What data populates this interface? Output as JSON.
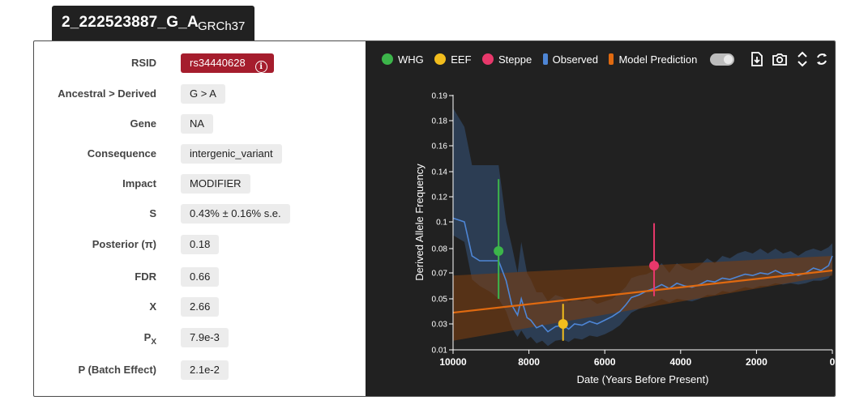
{
  "header": {
    "variant": "2_222523887_G_A",
    "build": "GRCh37"
  },
  "info_rows": [
    {
      "label": "RSID",
      "value": "rs34440628",
      "style": "badge"
    },
    {
      "label": "Ancestral > Derived",
      "value": "G > A"
    },
    {
      "label": "Gene",
      "value": "NA"
    },
    {
      "label": "Consequence",
      "value": "intergenic_variant"
    },
    {
      "label": "Impact",
      "value": "MODIFIER"
    },
    {
      "label": "S",
      "value": "0.43% ± 0.16% s.e."
    },
    {
      "label": "Posterior (π)",
      "value": "0.18"
    },
    {
      "label": "FDR",
      "value": "0.66"
    },
    {
      "label": "X",
      "value": "2.66"
    },
    {
      "label_main": "P",
      "label_sub": "X",
      "value": "7.9e-3"
    },
    {
      "label": "P (Batch Effect)",
      "value": "2.1e-2"
    }
  ],
  "rsid_info_glyph": "i",
  "legend": [
    {
      "label": "WHG",
      "color": "#3cb54a",
      "shape": "dot"
    },
    {
      "label": "EEF",
      "color": "#f2bd1d",
      "shape": "dot"
    },
    {
      "label": "Steppe",
      "color": "#e8386b",
      "shape": "dot"
    },
    {
      "label": "Observed",
      "color": "#4e86d6",
      "shape": "bar"
    },
    {
      "label": "Model Prediction",
      "color": "#e06a10",
      "shape": "bar"
    }
  ],
  "toolbar_icons": [
    "file-download-icon",
    "camera-icon",
    "expand-icon",
    "refresh-icon"
  ],
  "chart_data": {
    "type": "line",
    "xlabel": "Date (Years Before Present)",
    "ylabel": "Derived Allele Frequency",
    "xlim": [
      10000,
      0
    ],
    "ylim": [
      0.01,
      0.19
    ],
    "x_ticks": [
      10000,
      8000,
      6000,
      4000,
      2000,
      0
    ],
    "y_ticks": [
      0.01,
      0.03,
      0.05,
      0.07,
      0.08,
      0.1,
      0.12,
      0.14,
      0.16,
      0.18,
      0.19
    ],
    "grid": false,
    "colors": {
      "observed": "#4e86d6",
      "observed_band": "#2f4560",
      "model": "#e06a10",
      "model_band": "#7a3d10",
      "axis": "#ffffff"
    },
    "observed": {
      "x": [
        10000,
        9700,
        9500,
        9300,
        9000,
        8800,
        8600,
        8450,
        8300,
        8200,
        8050,
        7950,
        7800,
        7650,
        7500,
        7300,
        7100,
        6950,
        6800,
        6600,
        6400,
        6200,
        6000,
        5800,
        5600,
        5450,
        5300,
        5100,
        4900,
        4700,
        4500,
        4300,
        4100,
        3900,
        3700,
        3500,
        3300,
        3100,
        2900,
        2700,
        2500,
        2300,
        2100,
        1900,
        1700,
        1500,
        1300,
        1100,
        900,
        700,
        500,
        300,
        100,
        0
      ],
      "y": [
        0.103,
        0.1,
        0.077,
        0.075,
        0.075,
        0.075,
        0.064,
        0.045,
        0.037,
        0.05,
        0.035,
        0.033,
        0.027,
        0.029,
        0.024,
        0.028,
        0.029,
        0.026,
        0.03,
        0.029,
        0.032,
        0.03,
        0.033,
        0.036,
        0.04,
        0.045,
        0.051,
        0.053,
        0.056,
        0.058,
        0.061,
        0.058,
        0.062,
        0.06,
        0.059,
        0.061,
        0.064,
        0.063,
        0.066,
        0.065,
        0.067,
        0.069,
        0.068,
        0.07,
        0.069,
        0.071,
        0.069,
        0.07,
        0.068,
        0.07,
        0.072,
        0.071,
        0.073,
        0.077
      ],
      "lower": [
        0.09,
        0.085,
        0.065,
        0.06,
        0.055,
        0.05,
        0.04,
        0.027,
        0.02,
        0.025,
        0.018,
        0.02,
        0.015,
        0.017,
        0.013,
        0.017,
        0.018,
        0.016,
        0.019,
        0.018,
        0.021,
        0.02,
        0.022,
        0.025,
        0.029,
        0.034,
        0.039,
        0.042,
        0.045,
        0.047,
        0.05,
        0.047,
        0.05,
        0.049,
        0.048,
        0.05,
        0.053,
        0.053,
        0.056,
        0.055,
        0.057,
        0.059,
        0.058,
        0.06,
        0.06,
        0.062,
        0.061,
        0.062,
        0.061,
        0.062,
        0.064,
        0.064,
        0.066,
        0.07
      ],
      "upper": [
        0.185,
        0.175,
        0.145,
        0.145,
        0.145,
        0.145,
        0.1,
        0.082,
        0.07,
        0.085,
        0.07,
        0.065,
        0.055,
        0.055,
        0.048,
        0.053,
        0.051,
        0.047,
        0.05,
        0.048,
        0.05,
        0.046,
        0.048,
        0.05,
        0.055,
        0.059,
        0.066,
        0.068,
        0.069,
        0.071,
        0.074,
        0.07,
        0.074,
        0.072,
        0.071,
        0.073,
        0.076,
        0.074,
        0.077,
        0.076,
        0.078,
        0.079,
        0.078,
        0.08,
        0.078,
        0.08,
        0.078,
        0.079,
        0.077,
        0.079,
        0.08,
        0.079,
        0.081,
        0.084
      ]
    },
    "model": {
      "x": [
        10000,
        0
      ],
      "y": [
        0.039,
        0.071
      ],
      "lower": [
        0.017,
        0.068
      ],
      "upper": [
        0.068,
        0.077
      ]
    },
    "populations": [
      {
        "name": "WHG",
        "x": 8800,
        "y": 0.079,
        "low": 0.05,
        "high": 0.134,
        "color": "#3cb54a"
      },
      {
        "name": "EEF",
        "x": 7100,
        "y": 0.03,
        "low": 0.017,
        "high": 0.046,
        "color": "#f2bd1d"
      },
      {
        "name": "Steppe",
        "x": 4700,
        "y": 0.073,
        "low": 0.052,
        "high": 0.099,
        "color": "#e8386b"
      }
    ]
  }
}
